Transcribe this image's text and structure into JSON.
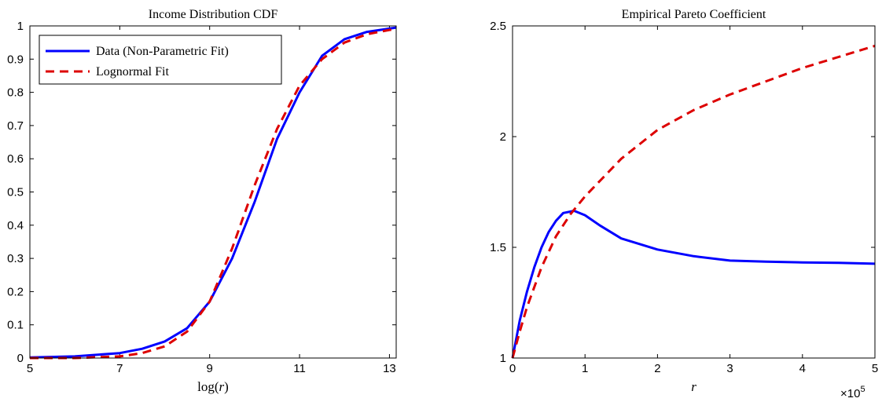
{
  "chart_data": [
    {
      "type": "line",
      "title": "Income Distribution CDF",
      "xlabel": "log(r)",
      "ylabel": "",
      "xlim": [
        5,
        13.15
      ],
      "ylim": [
        0,
        1
      ],
      "xticks": [
        5,
        7,
        9,
        11,
        13
      ],
      "yticks": [
        0,
        0.1,
        0.2,
        0.3,
        0.4,
        0.5,
        0.6,
        0.7,
        0.8,
        0.9,
        1
      ],
      "ytick_labels": [
        "0",
        "0.1",
        "0.2",
        "0.3",
        "0.4",
        "0.5",
        "0.6",
        "0.7",
        "0.8",
        "0.9",
        "1"
      ],
      "legend_position": "top-left",
      "series": [
        {
          "name": "Data (Non-Parametric Fit)",
          "color": "#0000ff",
          "style": "solid",
          "x": [
            5,
            6,
            7,
            7.5,
            8,
            8.5,
            9,
            9.5,
            10,
            10.5,
            11,
            11.5,
            12,
            12.5,
            13,
            13.15
          ],
          "y": [
            0.002,
            0.005,
            0.015,
            0.028,
            0.05,
            0.09,
            0.17,
            0.3,
            0.47,
            0.66,
            0.8,
            0.91,
            0.96,
            0.982,
            0.992,
            0.995
          ]
        },
        {
          "name": "Lognormal Fit",
          "color": "#dd0000",
          "style": "dashed",
          "x": [
            5,
            6,
            7,
            7.5,
            8,
            8.5,
            9,
            9.5,
            10,
            10.5,
            11,
            11.5,
            12,
            12.5,
            13,
            13.15
          ],
          "y": [
            0.0,
            0.0,
            0.005,
            0.015,
            0.035,
            0.08,
            0.17,
            0.33,
            0.52,
            0.69,
            0.82,
            0.9,
            0.95,
            0.975,
            0.988,
            0.99
          ]
        }
      ]
    },
    {
      "type": "line",
      "title": "Empirical Pareto Coefficient",
      "xlabel": "r",
      "ylabel": "",
      "x_multiplier_label": "×10",
      "x_multiplier_exponent": "5",
      "xlim": [
        0,
        5
      ],
      "ylim": [
        1,
        2.5
      ],
      "xticks": [
        0,
        1,
        2,
        3,
        4,
        5
      ],
      "yticks": [
        1,
        1.5,
        2,
        2.5
      ],
      "ytick_labels": [
        "1",
        "1.5",
        "2",
        "2.5"
      ],
      "series": [
        {
          "name": "Data (Non-Parametric Fit)",
          "color": "#0000ff",
          "style": "solid",
          "x": [
            0,
            0.1,
            0.2,
            0.3,
            0.4,
            0.5,
            0.6,
            0.7,
            0.85,
            1.0,
            1.2,
            1.5,
            2.0,
            2.5,
            3.0,
            3.5,
            4.0,
            4.5,
            5.0
          ],
          "y": [
            1.0,
            1.17,
            1.3,
            1.41,
            1.5,
            1.57,
            1.62,
            1.655,
            1.665,
            1.645,
            1.6,
            1.54,
            1.49,
            1.46,
            1.44,
            1.435,
            1.432,
            1.43,
            1.426
          ]
        },
        {
          "name": "Lognormal Fit",
          "color": "#dd0000",
          "style": "dashed",
          "x": [
            0,
            0.1,
            0.2,
            0.4,
            0.6,
            0.8,
            1.0,
            1.5,
            2.0,
            2.5,
            3.0,
            3.5,
            4.0,
            4.5,
            5.0
          ],
          "y": [
            1.0,
            1.12,
            1.23,
            1.41,
            1.55,
            1.65,
            1.73,
            1.9,
            2.03,
            2.12,
            2.19,
            2.25,
            2.31,
            2.36,
            2.41
          ]
        }
      ]
    }
  ]
}
